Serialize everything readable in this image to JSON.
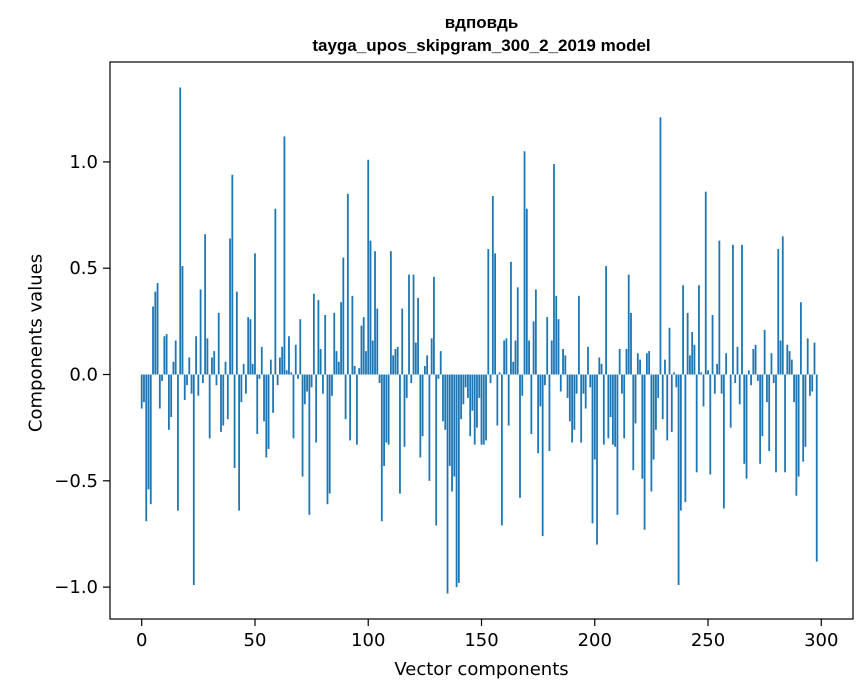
{
  "chart_data": {
    "type": "bar",
    "title_lines": [
      "вдповдь",
      "tayga_upos_skipgram_300_2_2019 model"
    ],
    "xlabel": "Vector components",
    "ylabel": "Components values",
    "xlim": [
      -14,
      314
    ],
    "ylim": [
      -1.15,
      1.47
    ],
    "xticks": [
      0,
      50,
      100,
      150,
      200,
      250,
      300
    ],
    "yticks": [
      -1.0,
      -0.5,
      0.0,
      0.5,
      1.0
    ],
    "ytick_labels": [
      "−1.0",
      "−0.5",
      "0.0",
      "0.5",
      "1.0"
    ],
    "bar_color": "#1f77b4",
    "x_start": 0,
    "values": [
      -0.16,
      -0.13,
      -0.69,
      -0.54,
      -0.61,
      0.32,
      0.39,
      0.43,
      -0.16,
      -0.03,
      0.18,
      0.19,
      -0.26,
      -0.2,
      0.06,
      0.16,
      -0.64,
      1.35,
      0.51,
      -0.12,
      -0.05,
      0.08,
      -0.09,
      -0.99,
      0.18,
      -0.1,
      0.4,
      -0.04,
      0.66,
      0.17,
      -0.3,
      0.08,
      0.11,
      -0.05,
      0.29,
      -0.27,
      -0.24,
      0.06,
      -0.21,
      0.64,
      0.94,
      -0.44,
      0.39,
      -0.64,
      -0.13,
      0.05,
      -0.09,
      0.27,
      0.26,
      0.05,
      0.57,
      -0.28,
      -0.02,
      0.13,
      -0.22,
      -0.39,
      -0.35,
      0.07,
      -0.18,
      0.78,
      -0.05,
      0.08,
      0.13,
      1.12,
      0.02,
      0.18,
      0.01,
      -0.3,
      0.14,
      -0.02,
      0.26,
      -0.48,
      -0.14,
      -0.08,
      -0.66,
      -0.06,
      0.38,
      -0.32,
      0.35,
      0.12,
      -0.09,
      0.28,
      -0.61,
      -0.56,
      -0.1,
      0.29,
      0.11,
      0.06,
      0.34,
      0.55,
      -0.21,
      0.85,
      -0.31,
      0.37,
      0.04,
      -0.33,
      0.03,
      0.23,
      0.27,
      0.11,
      1.01,
      0.63,
      0.16,
      0.58,
      0.31,
      -0.04,
      -0.69,
      -0.43,
      -0.32,
      -0.33,
      0.58,
      0.09,
      0.12,
      0.13,
      -0.56,
      0.31,
      -0.34,
      -0.11,
      0.47,
      -0.04,
      0.47,
      0.15,
      0.36,
      -0.39,
      -0.29,
      0.04,
      0.09,
      -0.5,
      0.17,
      0.46,
      -0.71,
      -0.02,
      0.11,
      -0.22,
      -0.26,
      -1.03,
      -0.43,
      -0.55,
      -0.48,
      -1.0,
      -0.98,
      -0.21,
      -0.14,
      -0.06,
      -0.11,
      -0.29,
      -0.17,
      -0.33,
      -0.25,
      -0.11,
      -0.33,
      -0.33,
      -0.31,
      0.59,
      -0.04,
      0.84,
      0.57,
      -0.24,
      0.01,
      -0.71,
      0.16,
      0.17,
      -0.24,
      0.53,
      0.06,
      0.16,
      0.41,
      -0.58,
      -0.1,
      1.05,
      0.78,
      0.16,
      -0.28,
      0.25,
      0.4,
      -0.37,
      -0.15,
      -0.76,
      -0.05,
      0.27,
      -0.36,
      0.16,
      0.99,
      0.37,
      0.26,
      -0.08,
      0.12,
      0.09,
      -0.11,
      -0.22,
      -0.32,
      -0.26,
      -0.09,
      0.37,
      -0.32,
      -0.09,
      -0.16,
      0.13,
      -0.06,
      -0.7,
      -0.4,
      -0.8,
      0.08,
      0.05,
      -0.33,
      0.51,
      -0.3,
      -0.2,
      -0.33,
      -0.34,
      -0.66,
      0.12,
      -0.09,
      -0.3,
      0.12,
      0.47,
      0.29,
      -0.45,
      -0.23,
      0.1,
      0.07,
      -0.49,
      -0.73,
      0.1,
      0.11,
      -0.55,
      -0.4,
      -0.26,
      -0.11,
      1.21,
      -0.21,
      0.07,
      -0.31,
      0.22,
      -0.27,
      0.01,
      -0.06,
      -0.99,
      -0.64,
      0.42,
      -0.6,
      0.29,
      0.09,
      0.2,
      0.14,
      -0.46,
      0.42,
      0.01,
      -0.15,
      0.86,
      0.02,
      -0.47,
      0.28,
      -0.09,
      0.05,
      0.63,
      -0.09,
      -0.63,
      0.1,
      0.0,
      -0.25,
      0.61,
      -0.04,
      0.13,
      -0.14,
      0.61,
      -0.42,
      -0.49,
      0.02,
      -0.05,
      0.12,
      0.14,
      -0.03,
      -0.42,
      -0.29,
      0.21,
      -0.13,
      -0.36,
      0.1,
      -0.04,
      -0.46,
      0.59,
      0.16,
      0.65,
      -0.46,
      0.14,
      0.11,
      0.07,
      -0.13,
      -0.57,
      -0.48,
      0.34,
      -0.41,
      -0.34,
      0.17,
      -0.1,
      -0.08,
      0.15,
      -0.88,
      0.0
    ]
  }
}
